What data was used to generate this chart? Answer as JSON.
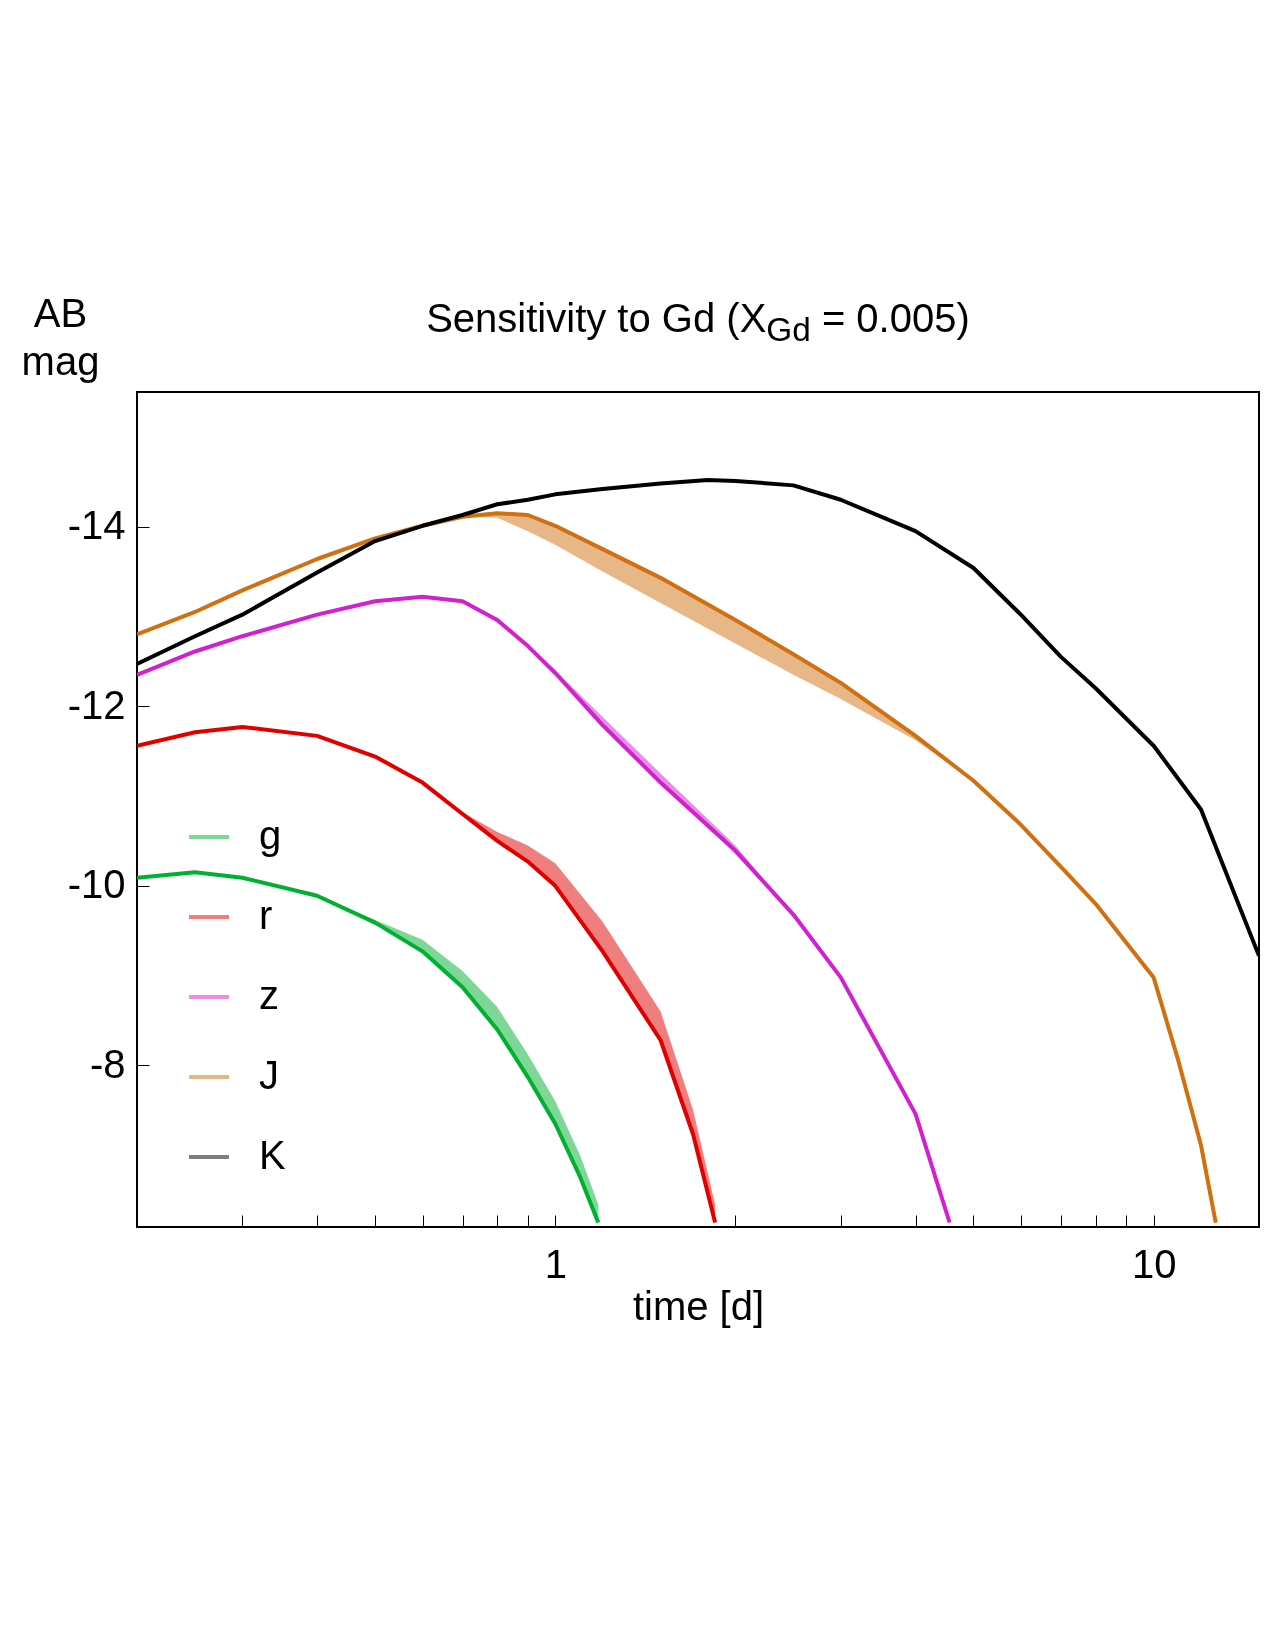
{
  "chart_data": {
    "type": "line",
    "title": "Sensitivity to Gd (X$_{Gd}$ = 0.005)",
    "xlabel": "time [d]",
    "ylabel": "AB mag",
    "log": "x",
    "xlim": [
      0.2,
      15
    ],
    "ylim": [
      -6.2,
      -15.5
    ],
    "xticks": [
      {
        "value": 0.3,
        "label": null
      },
      {
        "value": 0.4,
        "label": null
      },
      {
        "value": 0.5,
        "label": null
      },
      {
        "value": 0.6,
        "label": null
      },
      {
        "value": 0.7,
        "label": null
      },
      {
        "value": 0.8,
        "label": null
      },
      {
        "value": 0.9,
        "label": null
      },
      1,
      {
        "value": 2,
        "label": null
      },
      {
        "value": 3,
        "label": null
      },
      {
        "value": 4,
        "label": null
      },
      {
        "value": 5,
        "label": null
      },
      {
        "value": 6,
        "label": null
      },
      {
        "value": 7,
        "label": null
      },
      {
        "value": 8,
        "label": null
      },
      {
        "value": 9,
        "label": null
      },
      10
    ],
    "yticks": [
      -14,
      -12,
      -10,
      -8
    ],
    "legend": "bottom left",
    "series": [
      {
        "name": "g",
        "color": "#00b030",
        "x": [
          0.2,
          0.25,
          0.3,
          0.4,
          0.5,
          0.6,
          0.7,
          0.8,
          0.9,
          1,
          1.1,
          1.18
        ],
        "values": [
          -10.09,
          -10.15,
          -10.09,
          -9.89,
          -9.59,
          -9.27,
          -8.87,
          -8.4,
          -7.87,
          -7.35,
          -6.76,
          -6.25
        ],
        "lower": [
          -10.09,
          -10.15,
          -10.09,
          -9.89,
          -9.62,
          -9.4,
          -9.05,
          -8.65,
          -8.12,
          -7.6,
          -7.0,
          -6.45
        ],
        "upper": [
          -10.09,
          -10.15,
          -10.09,
          -9.89,
          -9.59,
          -9.27,
          -8.87,
          -8.4,
          -7.87,
          -7.35,
          -6.76,
          -6.25
        ]
      },
      {
        "name": "r",
        "color": "#e00000",
        "x": [
          0.2,
          0.25,
          0.3,
          0.4,
          0.5,
          0.6,
          0.7,
          0.8,
          0.9,
          1,
          1.2,
          1.5,
          1.7,
          1.85
        ],
        "values": [
          -11.56,
          -11.71,
          -11.77,
          -11.67,
          -11.44,
          -11.15,
          -10.8,
          -10.5,
          -10.27,
          -10.0,
          -9.27,
          -8.28,
          -7.23,
          -6.25
        ],
        "lower": [
          -11.56,
          -11.71,
          -11.77,
          -11.67,
          -11.44,
          -11.15,
          -10.82,
          -10.6,
          -10.45,
          -10.25,
          -9.6,
          -8.6,
          -7.5,
          -6.45
        ],
        "upper": [
          -11.56,
          -11.71,
          -11.77,
          -11.67,
          -11.44,
          -11.15,
          -10.8,
          -10.5,
          -10.27,
          -10.0,
          -9.27,
          -8.28,
          -7.23,
          -6.25
        ]
      },
      {
        "name": "z",
        "color": "#d020d0",
        "x": [
          0.2,
          0.25,
          0.3,
          0.4,
          0.5,
          0.6,
          0.7,
          0.8,
          0.9,
          1,
          1.2,
          1.5,
          2,
          2.5,
          3,
          4,
          4.56
        ],
        "values": [
          -12.35,
          -12.61,
          -12.78,
          -13.02,
          -13.17,
          -13.22,
          -13.17,
          -12.96,
          -12.67,
          -12.37,
          -11.79,
          -11.15,
          -10.39,
          -9.68,
          -8.98,
          -7.46,
          -6.25
        ],
        "lower": [
          -12.35,
          -12.61,
          -12.78,
          -13.02,
          -13.17,
          -13.22,
          -13.17,
          -12.96,
          -12.67,
          -12.4,
          -11.88,
          -11.25,
          -10.45,
          -9.68,
          -8.98,
          -7.46,
          -6.25
        ],
        "upper": [
          -12.35,
          -12.61,
          -12.78,
          -13.02,
          -13.17,
          -13.22,
          -13.17,
          -12.96,
          -12.67,
          -12.37,
          -11.79,
          -11.15,
          -10.39,
          -9.68,
          -8.98,
          -7.46,
          -6.25
        ]
      },
      {
        "name": "J",
        "color": "#d07010",
        "x": [
          0.2,
          0.25,
          0.3,
          0.4,
          0.5,
          0.6,
          0.7,
          0.8,
          0.9,
          1,
          1.2,
          1.5,
          2,
          2.5,
          3,
          4,
          5,
          6,
          7,
          8,
          10,
          11,
          12,
          12.7
        ],
        "values": [
          -12.8,
          -13.05,
          -13.29,
          -13.64,
          -13.87,
          -14.01,
          -14.11,
          -14.15,
          -14.13,
          -14.01,
          -13.75,
          -13.43,
          -12.96,
          -12.58,
          -12.26,
          -11.67,
          -11.17,
          -10.68,
          -10.21,
          -9.8,
          -8.98,
          -8.05,
          -7.11,
          -6.25
        ],
        "lower": [
          -12.8,
          -13.05,
          -13.29,
          -13.64,
          -13.87,
          -14.01,
          -14.11,
          -14.15,
          -14.13,
          -14.01,
          -13.75,
          -13.43,
          -12.96,
          -12.58,
          -12.26,
          -11.67,
          -11.17,
          -10.68,
          -10.21,
          -9.8,
          -8.98,
          -8.05,
          -7.11,
          -6.25
        ],
        "upper": [
          -12.8,
          -13.05,
          -13.29,
          -13.64,
          -13.87,
          -14.01,
          -14.11,
          -14.1,
          -13.95,
          -13.8,
          -13.5,
          -13.15,
          -12.7,
          -12.35,
          -12.08,
          -11.62,
          -11.17,
          -10.68,
          -10.21,
          -9.8,
          -8.98,
          -8.05,
          -7.11,
          -6.25
        ]
      },
      {
        "name": "K",
        "color": "#000000",
        "x": [
          0.2,
          0.25,
          0.3,
          0.4,
          0.5,
          0.6,
          0.7,
          0.8,
          0.9,
          1,
          1.2,
          1.5,
          1.8,
          2,
          2.5,
          3,
          4,
          5,
          6,
          7,
          8,
          10,
          12,
          15
        ],
        "values": [
          -12.47,
          -12.78,
          -13.02,
          -13.49,
          -13.84,
          -14.01,
          -14.13,
          -14.25,
          -14.3,
          -14.36,
          -14.42,
          -14.48,
          -14.52,
          -14.51,
          -14.46,
          -14.3,
          -13.95,
          -13.54,
          -13.02,
          -12.55,
          -12.2,
          -11.56,
          -10.85,
          -9.22
        ]
      }
    ]
  }
}
